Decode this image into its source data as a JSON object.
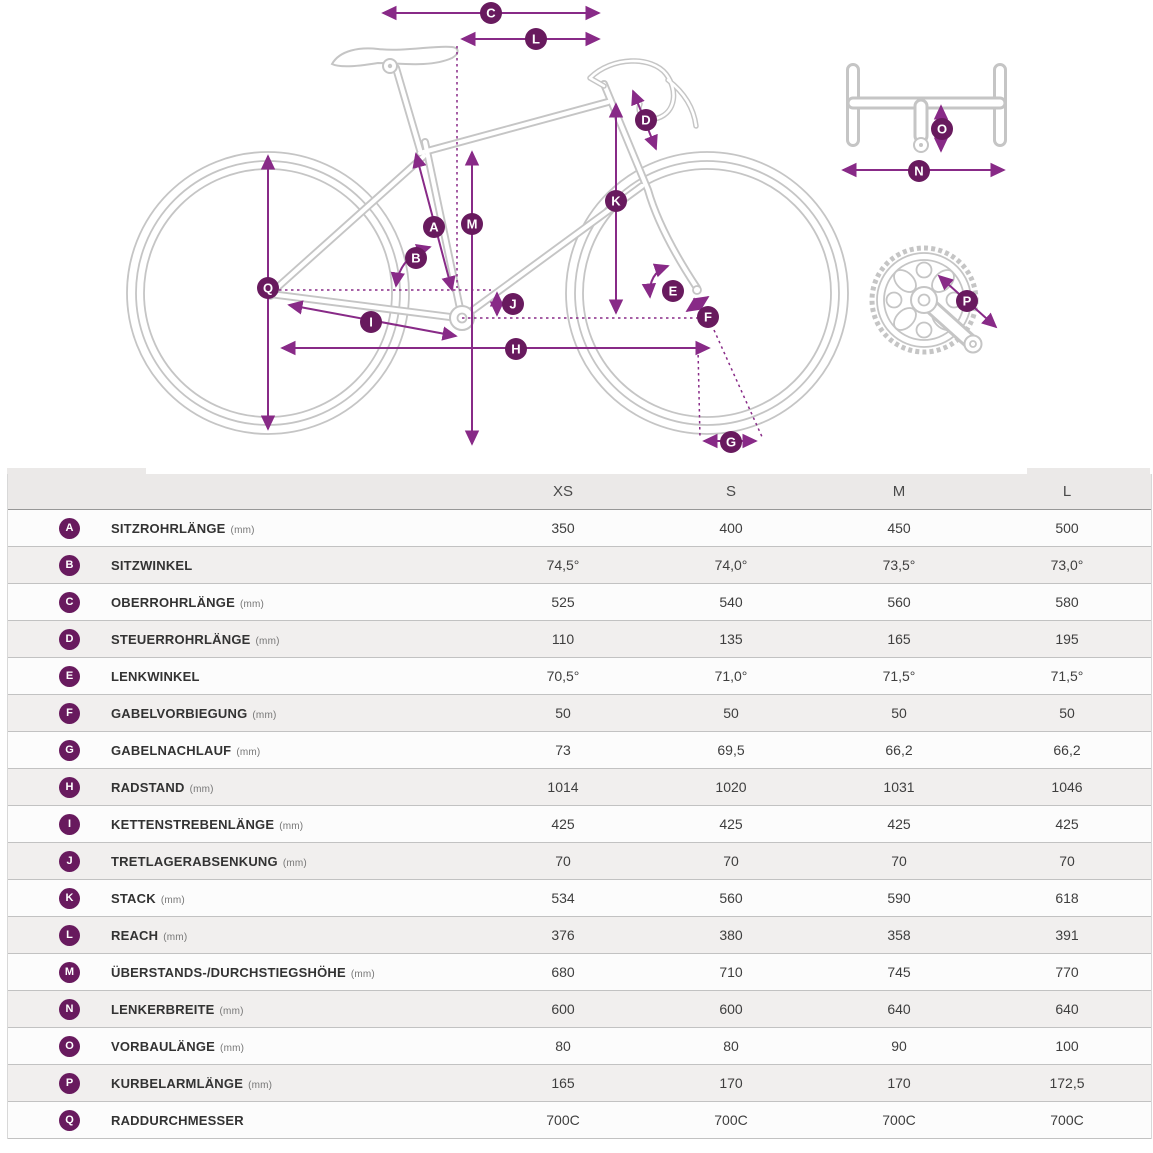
{
  "colors": {
    "badge_purple": "#681a5e",
    "arrow_purple": "#882a87",
    "bike_line_gray": "#c5c5c5",
    "header_bg": "#ebe9e8",
    "row_alt_bg": "#f1efee"
  },
  "diagram": {
    "badges": [
      "C",
      "L",
      "D",
      "K",
      "M",
      "A",
      "B",
      "J",
      "Q",
      "I",
      "H",
      "E",
      "F",
      "G",
      "O",
      "N",
      "P"
    ]
  },
  "table": {
    "sizes": [
      "XS",
      "S",
      "M",
      "L"
    ],
    "rows": [
      {
        "letter": "A",
        "label": "SITZROHRLÄNGE",
        "unit": "(mm)",
        "values": [
          "350",
          "400",
          "450",
          "500"
        ]
      },
      {
        "letter": "B",
        "label": "SITZWINKEL",
        "unit": "",
        "values": [
          "74,5°",
          "74,0°",
          "73,5°",
          "73,0°"
        ]
      },
      {
        "letter": "C",
        "label": "OBERROHRLÄNGE",
        "unit": "(mm)",
        "values": [
          "525",
          "540",
          "560",
          "580"
        ]
      },
      {
        "letter": "D",
        "label": "STEUERROHRLÄNGE",
        "unit": "(mm)",
        "values": [
          "110",
          "135",
          "165",
          "195"
        ]
      },
      {
        "letter": "E",
        "label": "LENKWINKEL",
        "unit": "",
        "values": [
          "70,5°",
          "71,0°",
          "71,5°",
          "71,5°"
        ]
      },
      {
        "letter": "F",
        "label": "GABELVORBIEGUNG",
        "unit": "(mm)",
        "values": [
          "50",
          "50",
          "50",
          "50"
        ]
      },
      {
        "letter": "G",
        "label": "GABELNACHLAUF",
        "unit": "(mm)",
        "values": [
          "73",
          "69,5",
          "66,2",
          "66,2"
        ]
      },
      {
        "letter": "H",
        "label": "RADSTAND",
        "unit": "(mm)",
        "values": [
          "1014",
          "1020",
          "1031",
          "1046"
        ]
      },
      {
        "letter": "I",
        "label": "KETTENSTREBENLÄNGE",
        "unit": "(mm)",
        "values": [
          "425",
          "425",
          "425",
          "425"
        ]
      },
      {
        "letter": "J",
        "label": "TRETLAGERABSENKUNG",
        "unit": "(mm)",
        "values": [
          "70",
          "70",
          "70",
          "70"
        ]
      },
      {
        "letter": "K",
        "label": "STACK",
        "unit": "(mm)",
        "values": [
          "534",
          "560",
          "590",
          "618"
        ]
      },
      {
        "letter": "L",
        "label": "REACH",
        "unit": "(mm)",
        "values": [
          "376",
          "380",
          "358",
          "391"
        ]
      },
      {
        "letter": "M",
        "label": "ÜBERSTANDS-/DURCHSTIEGSHÖHE",
        "unit": "(mm)",
        "values": [
          "680",
          "710",
          "745",
          "770"
        ]
      },
      {
        "letter": "N",
        "label": "LENKERBREITE",
        "unit": "(mm)",
        "values": [
          "600",
          "600",
          "640",
          "640"
        ]
      },
      {
        "letter": "O",
        "label": "VORBAULÄNGE",
        "unit": "(mm)",
        "values": [
          "80",
          "80",
          "90",
          "100"
        ]
      },
      {
        "letter": "P",
        "label": "KURBELARMLÄNGE",
        "unit": "(mm)",
        "values": [
          "165",
          "170",
          "170",
          "172,5"
        ]
      },
      {
        "letter": "Q",
        "label": "RADDURCHMESSER",
        "unit": "",
        "values": [
          "700C",
          "700C",
          "700C",
          "700C"
        ]
      }
    ]
  }
}
